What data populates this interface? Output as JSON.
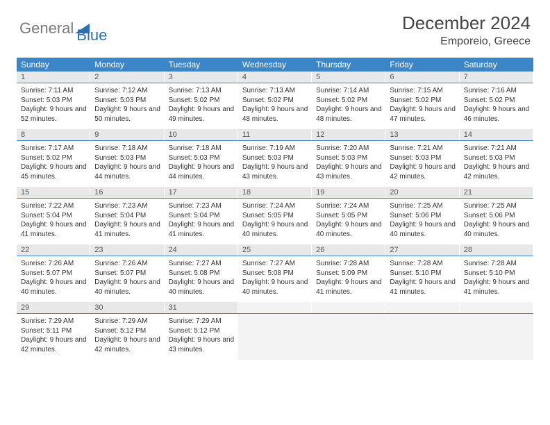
{
  "logo": {
    "part1": "General",
    "part2": "Blue"
  },
  "title": "December 2024",
  "location": "Emporeio, Greece",
  "colors": {
    "header_bg": "#3b86c8",
    "daynum_bg": "#e8e8e8",
    "empty_bg": "#f3f3f3",
    "border": "#3b86c8",
    "logo_gray": "#7a7a7a",
    "logo_blue": "#2b6fb5",
    "text": "#333333"
  },
  "day_headers": [
    "Sunday",
    "Monday",
    "Tuesday",
    "Wednesday",
    "Thursday",
    "Friday",
    "Saturday"
  ],
  "weeks": [
    [
      {
        "n": "1",
        "sr": "7:11 AM",
        "ss": "5:03 PM",
        "dl": "9 hours and 52 minutes."
      },
      {
        "n": "2",
        "sr": "7:12 AM",
        "ss": "5:03 PM",
        "dl": "9 hours and 50 minutes."
      },
      {
        "n": "3",
        "sr": "7:13 AM",
        "ss": "5:02 PM",
        "dl": "9 hours and 49 minutes."
      },
      {
        "n": "4",
        "sr": "7:13 AM",
        "ss": "5:02 PM",
        "dl": "9 hours and 48 minutes."
      },
      {
        "n": "5",
        "sr": "7:14 AM",
        "ss": "5:02 PM",
        "dl": "9 hours and 48 minutes."
      },
      {
        "n": "6",
        "sr": "7:15 AM",
        "ss": "5:02 PM",
        "dl": "9 hours and 47 minutes."
      },
      {
        "n": "7",
        "sr": "7:16 AM",
        "ss": "5:02 PM",
        "dl": "9 hours and 46 minutes."
      }
    ],
    [
      {
        "n": "8",
        "sr": "7:17 AM",
        "ss": "5:02 PM",
        "dl": "9 hours and 45 minutes."
      },
      {
        "n": "9",
        "sr": "7:18 AM",
        "ss": "5:03 PM",
        "dl": "9 hours and 44 minutes."
      },
      {
        "n": "10",
        "sr": "7:18 AM",
        "ss": "5:03 PM",
        "dl": "9 hours and 44 minutes."
      },
      {
        "n": "11",
        "sr": "7:19 AM",
        "ss": "5:03 PM",
        "dl": "9 hours and 43 minutes."
      },
      {
        "n": "12",
        "sr": "7:20 AM",
        "ss": "5:03 PM",
        "dl": "9 hours and 43 minutes."
      },
      {
        "n": "13",
        "sr": "7:21 AM",
        "ss": "5:03 PM",
        "dl": "9 hours and 42 minutes."
      },
      {
        "n": "14",
        "sr": "7:21 AM",
        "ss": "5:03 PM",
        "dl": "9 hours and 42 minutes."
      }
    ],
    [
      {
        "n": "15",
        "sr": "7:22 AM",
        "ss": "5:04 PM",
        "dl": "9 hours and 41 minutes."
      },
      {
        "n": "16",
        "sr": "7:23 AM",
        "ss": "5:04 PM",
        "dl": "9 hours and 41 minutes."
      },
      {
        "n": "17",
        "sr": "7:23 AM",
        "ss": "5:04 PM",
        "dl": "9 hours and 41 minutes."
      },
      {
        "n": "18",
        "sr": "7:24 AM",
        "ss": "5:05 PM",
        "dl": "9 hours and 40 minutes."
      },
      {
        "n": "19",
        "sr": "7:24 AM",
        "ss": "5:05 PM",
        "dl": "9 hours and 40 minutes."
      },
      {
        "n": "20",
        "sr": "7:25 AM",
        "ss": "5:06 PM",
        "dl": "9 hours and 40 minutes."
      },
      {
        "n": "21",
        "sr": "7:25 AM",
        "ss": "5:06 PM",
        "dl": "9 hours and 40 minutes."
      }
    ],
    [
      {
        "n": "22",
        "sr": "7:26 AM",
        "ss": "5:07 PM",
        "dl": "9 hours and 40 minutes."
      },
      {
        "n": "23",
        "sr": "7:26 AM",
        "ss": "5:07 PM",
        "dl": "9 hours and 40 minutes."
      },
      {
        "n": "24",
        "sr": "7:27 AM",
        "ss": "5:08 PM",
        "dl": "9 hours and 40 minutes."
      },
      {
        "n": "25",
        "sr": "7:27 AM",
        "ss": "5:08 PM",
        "dl": "9 hours and 40 minutes."
      },
      {
        "n": "26",
        "sr": "7:28 AM",
        "ss": "5:09 PM",
        "dl": "9 hours and 41 minutes."
      },
      {
        "n": "27",
        "sr": "7:28 AM",
        "ss": "5:10 PM",
        "dl": "9 hours and 41 minutes."
      },
      {
        "n": "28",
        "sr": "7:28 AM",
        "ss": "5:10 PM",
        "dl": "9 hours and 41 minutes."
      }
    ],
    [
      {
        "n": "29",
        "sr": "7:29 AM",
        "ss": "5:11 PM",
        "dl": "9 hours and 42 minutes."
      },
      {
        "n": "30",
        "sr": "7:29 AM",
        "ss": "5:12 PM",
        "dl": "9 hours and 42 minutes."
      },
      {
        "n": "31",
        "sr": "7:29 AM",
        "ss": "5:12 PM",
        "dl": "9 hours and 43 minutes."
      },
      null,
      null,
      null,
      null
    ]
  ],
  "labels": {
    "sunrise": "Sunrise: ",
    "sunset": "Sunset: ",
    "daylight": "Daylight: "
  }
}
